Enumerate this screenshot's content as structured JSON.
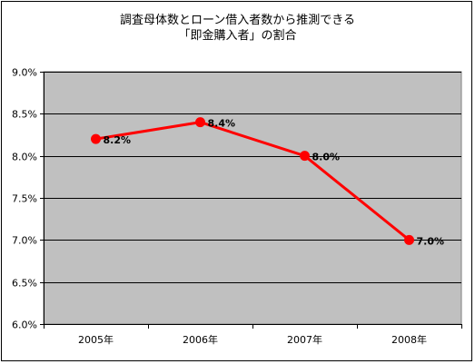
{
  "chart_data": {
    "type": "line",
    "title_lines": [
      "調査母体数とローン借入者数から推測できる",
      "「即金購入者」の割合"
    ],
    "categories": [
      "2005年",
      "2006年",
      "2007年",
      "2008年"
    ],
    "values": [
      8.2,
      8.4,
      8.0,
      7.0
    ],
    "data_labels": [
      "8.2%",
      "8.4%",
      "8.0%",
      "7.0%"
    ],
    "yticks": [
      "6.0%",
      "6.5%",
      "7.0%",
      "7.5%",
      "8.0%",
      "8.5%",
      "9.0%"
    ],
    "ylim": [
      6.0,
      9.0
    ],
    "grid": true,
    "legend": "none",
    "colors": {
      "line": "#ff0000",
      "plot_bg": "#c0c0c0",
      "grid": "#000000"
    }
  }
}
